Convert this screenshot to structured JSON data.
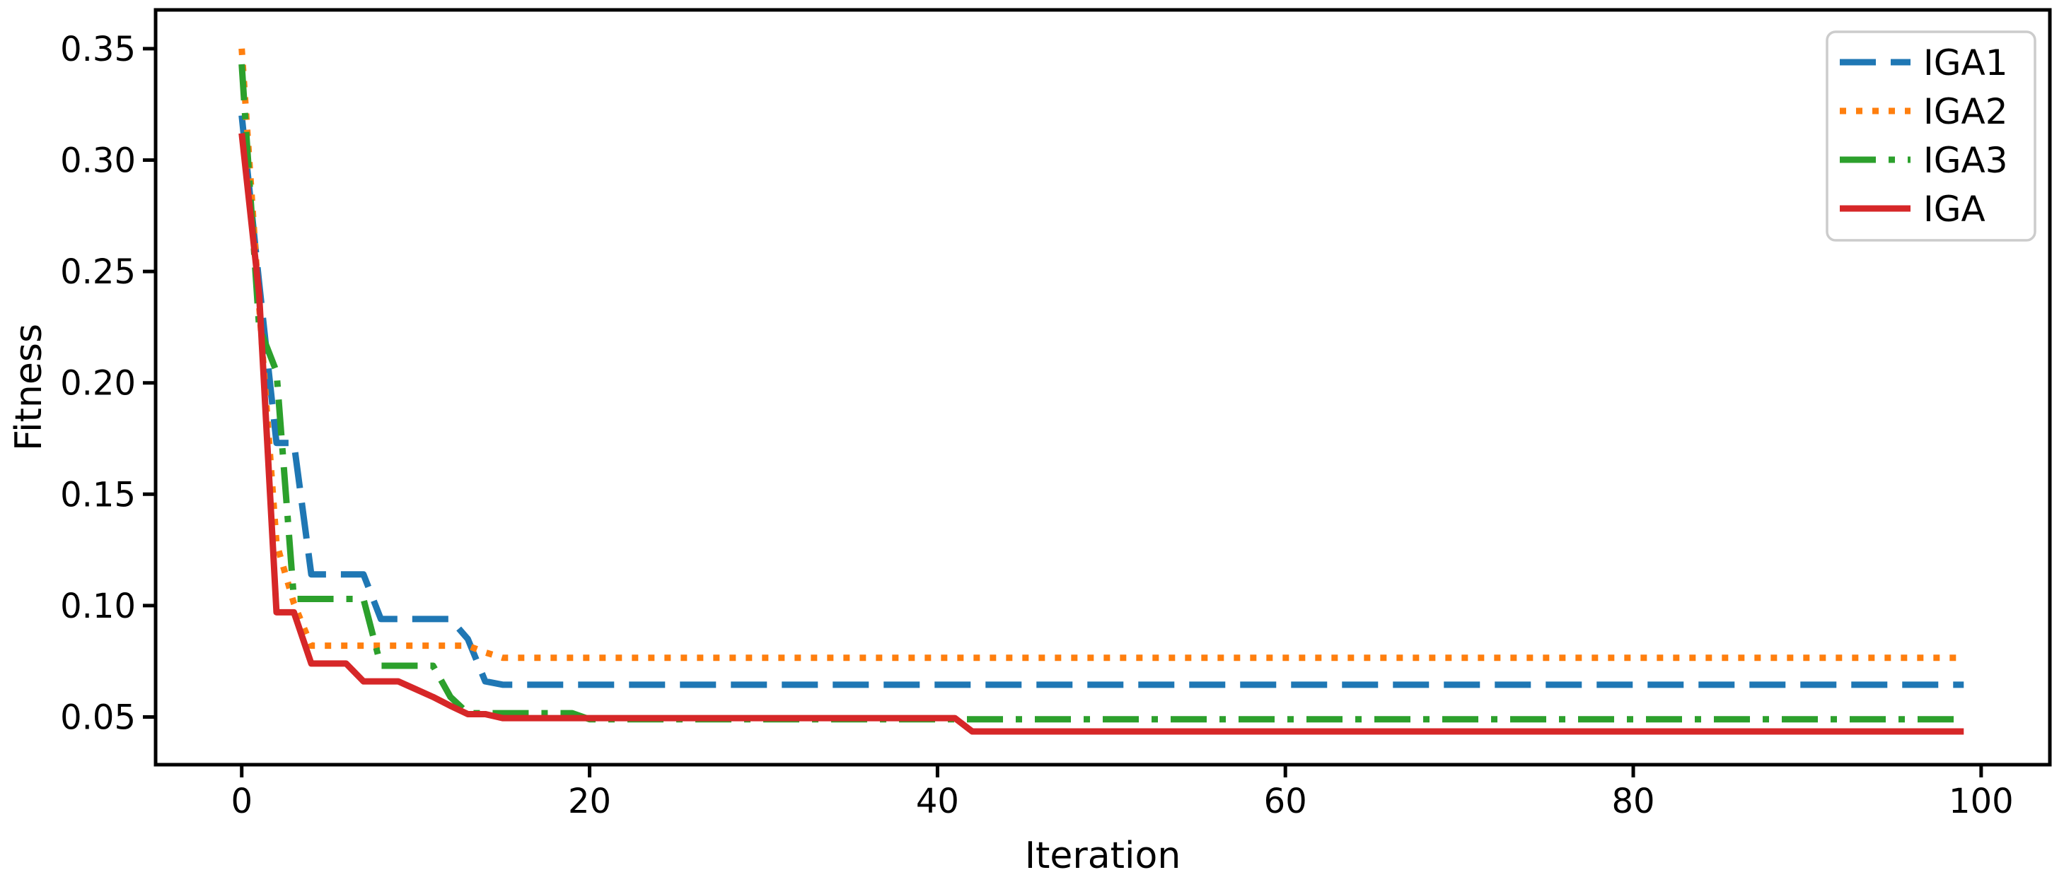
{
  "chart_data": {
    "type": "line",
    "title": "",
    "xlabel": "Iteration",
    "ylabel": "Fitness",
    "x_is_index": true,
    "x_range": [
      0,
      99
    ],
    "xlim": [
      -4.95,
      103.95
    ],
    "ylim": [
      0.0286,
      0.3674
    ],
    "grid": false,
    "legend_position": "upper right",
    "xticks": {
      "values": [
        0,
        20,
        40,
        60,
        80,
        100
      ],
      "labels": [
        "0",
        "20",
        "40",
        "60",
        "80",
        "100"
      ]
    },
    "yticks": {
      "values": [
        0.05,
        0.1,
        0.15,
        0.2,
        0.25,
        0.3,
        0.35
      ],
      "labels": [
        "0.05",
        "0.10",
        "0.15",
        "0.20",
        "0.25",
        "0.30",
        "0.35"
      ]
    },
    "series": [
      {
        "name": "IGA1",
        "color": "#1f77b4",
        "linestyle": "dashed",
        "values": [
          0.32,
          0.245,
          0.173,
          0.173,
          0.114,
          0.114,
          0.114,
          0.114,
          0.094,
          0.094,
          0.094,
          0.094,
          0.094,
          0.085,
          0.066,
          0.0645,
          0.0645,
          0.0645,
          0.0645,
          0.0645,
          0.0645,
          0.0645,
          0.0645,
          0.0645,
          0.0645,
          0.0645,
          0.0645,
          0.0645,
          0.0645,
          0.0645,
          0.0645,
          0.0645,
          0.0645,
          0.0645,
          0.0645,
          0.0645,
          0.0645,
          0.0645,
          0.0645,
          0.0645,
          0.0645,
          0.0645,
          0.0645,
          0.0645,
          0.0645,
          0.0645,
          0.0645,
          0.0645,
          0.0645,
          0.0645,
          0.0645,
          0.0645,
          0.0645,
          0.0645,
          0.0645,
          0.0645,
          0.0645,
          0.0645,
          0.0645,
          0.0645,
          0.0645,
          0.0645,
          0.0645,
          0.0645,
          0.0645,
          0.0645,
          0.0645,
          0.0645,
          0.0645,
          0.0645,
          0.0645,
          0.0645,
          0.0645,
          0.0645,
          0.0645,
          0.0645,
          0.0645,
          0.0645,
          0.0645,
          0.0645,
          0.0645,
          0.0645,
          0.0645,
          0.0645,
          0.0645,
          0.0645,
          0.0645,
          0.0645,
          0.0645,
          0.0645,
          0.0645,
          0.0645,
          0.0645,
          0.0645,
          0.0645,
          0.0645,
          0.0645,
          0.0645,
          0.0645,
          0.0645
        ]
      },
      {
        "name": "IGA2",
        "color": "#ff7f0e",
        "linestyle": "dotted",
        "values": [
          0.35,
          0.235,
          0.128,
          0.101,
          0.082,
          0.082,
          0.082,
          0.082,
          0.082,
          0.082,
          0.082,
          0.082,
          0.082,
          0.082,
          0.079,
          0.0766,
          0.0766,
          0.0766,
          0.0766,
          0.0766,
          0.0766,
          0.0766,
          0.0766,
          0.0766,
          0.0766,
          0.0766,
          0.0766,
          0.0766,
          0.0766,
          0.0766,
          0.0766,
          0.0766,
          0.0766,
          0.0766,
          0.0766,
          0.0766,
          0.0766,
          0.0766,
          0.0766,
          0.0766,
          0.0766,
          0.0766,
          0.0766,
          0.0766,
          0.0766,
          0.0766,
          0.0766,
          0.0766,
          0.0766,
          0.0766,
          0.0766,
          0.0766,
          0.0766,
          0.0766,
          0.0766,
          0.0766,
          0.0766,
          0.0766,
          0.0766,
          0.0766,
          0.0766,
          0.0766,
          0.0766,
          0.0766,
          0.0766,
          0.0766,
          0.0766,
          0.0766,
          0.0766,
          0.0766,
          0.0766,
          0.0766,
          0.0766,
          0.0766,
          0.0766,
          0.0766,
          0.0766,
          0.0766,
          0.0766,
          0.0766,
          0.0766,
          0.0766,
          0.0766,
          0.0766,
          0.0766,
          0.0766,
          0.0766,
          0.0766,
          0.0766,
          0.0766,
          0.0766,
          0.0766,
          0.0766,
          0.0766,
          0.0766,
          0.0766,
          0.0766,
          0.0766,
          0.0766,
          0.0766
        ]
      },
      {
        "name": "IGA3",
        "color": "#2ca02c",
        "linestyle": "dashdot",
        "values": [
          0.343,
          0.225,
          0.205,
          0.103,
          0.103,
          0.103,
          0.103,
          0.103,
          0.073,
          0.073,
          0.073,
          0.073,
          0.059,
          0.0517,
          0.0517,
          0.0517,
          0.0517,
          0.0517,
          0.0517,
          0.0517,
          0.049,
          0.049,
          0.049,
          0.049,
          0.049,
          0.049,
          0.049,
          0.049,
          0.049,
          0.049,
          0.049,
          0.049,
          0.049,
          0.049,
          0.049,
          0.049,
          0.049,
          0.049,
          0.049,
          0.049,
          0.049,
          0.049,
          0.049,
          0.049,
          0.049,
          0.049,
          0.049,
          0.049,
          0.049,
          0.049,
          0.049,
          0.049,
          0.049,
          0.049,
          0.049,
          0.049,
          0.049,
          0.049,
          0.049,
          0.049,
          0.049,
          0.049,
          0.049,
          0.049,
          0.049,
          0.049,
          0.049,
          0.049,
          0.049,
          0.049,
          0.049,
          0.049,
          0.049,
          0.049,
          0.049,
          0.049,
          0.049,
          0.049,
          0.049,
          0.049,
          0.049,
          0.049,
          0.049,
          0.049,
          0.049,
          0.049,
          0.049,
          0.049,
          0.049,
          0.049,
          0.049,
          0.049,
          0.049,
          0.049,
          0.049,
          0.049,
          0.049,
          0.049,
          0.049,
          0.049
        ]
      },
      {
        "name": "IGA",
        "color": "#d62728",
        "linestyle": "solid",
        "values": [
          0.312,
          0.24,
          0.097,
          0.097,
          0.074,
          0.074,
          0.074,
          0.066,
          0.066,
          0.066,
          0.0625,
          0.059,
          0.055,
          0.0513,
          0.0513,
          0.0495,
          0.0495,
          0.0495,
          0.0495,
          0.0495,
          0.0495,
          0.0495,
          0.0495,
          0.0495,
          0.0495,
          0.0495,
          0.0495,
          0.0495,
          0.0495,
          0.0495,
          0.0495,
          0.0495,
          0.0495,
          0.0495,
          0.0495,
          0.0495,
          0.0495,
          0.0495,
          0.0495,
          0.0495,
          0.0495,
          0.0495,
          0.0435,
          0.0435,
          0.0435,
          0.0435,
          0.0435,
          0.0435,
          0.0435,
          0.0435,
          0.0435,
          0.0435,
          0.0435,
          0.0435,
          0.0435,
          0.0435,
          0.0435,
          0.0435,
          0.0435,
          0.0435,
          0.0435,
          0.0435,
          0.0435,
          0.0435,
          0.0435,
          0.0435,
          0.0435,
          0.0435,
          0.0435,
          0.0435,
          0.0435,
          0.0435,
          0.0435,
          0.0435,
          0.0435,
          0.0435,
          0.0435,
          0.0435,
          0.0435,
          0.0435,
          0.0435,
          0.0435,
          0.0435,
          0.0435,
          0.0435,
          0.0435,
          0.0435,
          0.0435,
          0.0435,
          0.0435,
          0.0435,
          0.0435,
          0.0435,
          0.0435,
          0.0435,
          0.0435,
          0.0435,
          0.0435,
          0.0435,
          0.0435
        ]
      }
    ]
  },
  "colors": {
    "background": "#ffffff",
    "axis": "#000000",
    "legend_border": "#cccccc",
    "legend_background": "#ffffff"
  }
}
